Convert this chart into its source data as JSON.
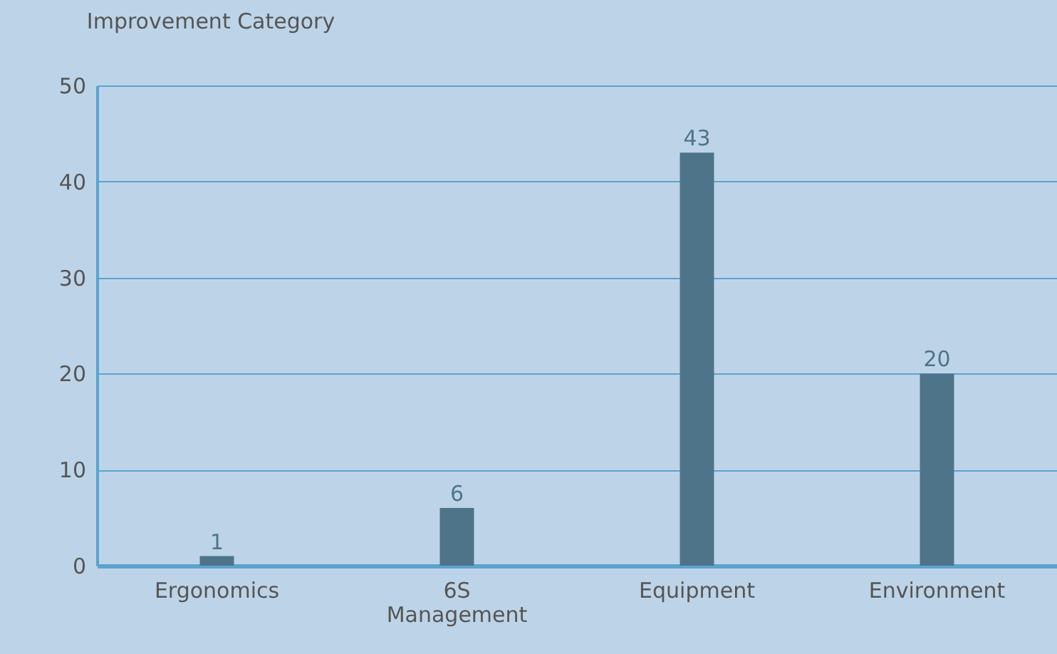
{
  "chart_data": {
    "type": "bar",
    "title": "Improvement Category",
    "categories": [
      "Ergonomics",
      "6S Management",
      "Equipment",
      "Environment"
    ],
    "values": [
      1,
      6,
      43,
      20
    ],
    "color": "#4e7489",
    "ylim": [
      0,
      50
    ],
    "yticks": [
      0,
      10,
      20,
      30,
      40,
      50
    ],
    "grid": "y",
    "data_labels": true
  }
}
